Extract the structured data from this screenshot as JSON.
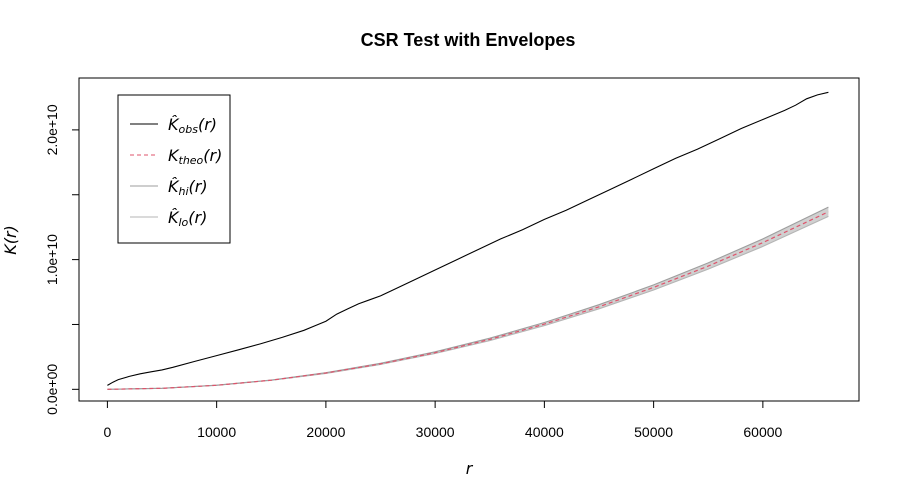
{
  "chart_data": {
    "type": "line",
    "title": "CSR Test with Envelopes",
    "xlabel": "r",
    "ylabel": "K(r)",
    "xlim": [
      -2600,
      68800
    ],
    "ylim": [
      -900000000,
      24000000000
    ],
    "x_ticks": [
      {
        "value": 0,
        "label": "0"
      },
      {
        "value": 10000,
        "label": "10000"
      },
      {
        "value": 20000,
        "label": "20000"
      },
      {
        "value": 30000,
        "label": "30000"
      },
      {
        "value": 40000,
        "label": "40000"
      },
      {
        "value": 50000,
        "label": "50000"
      },
      {
        "value": 60000,
        "label": "60000"
      }
    ],
    "y_ticks": [
      {
        "value": 0,
        "label": "0.0e+00"
      },
      {
        "value": 5000000000,
        "label": ""
      },
      {
        "value": 10000000000,
        "label": "1.0e+10"
      },
      {
        "value": 15000000000,
        "label": ""
      },
      {
        "value": 20000000000,
        "label": "2.0e+10"
      }
    ],
    "legend_position": "top-left",
    "series": [
      {
        "name": "K̂obs(r)",
        "label_base": "K̂",
        "label_sub": "obs",
        "label_tail": "(r)",
        "color": "#000000",
        "style": "solid",
        "x": [
          0,
          500,
          1000,
          2000,
          3000,
          4000,
          5000,
          6000,
          8000,
          10000,
          12000,
          14000,
          16000,
          18000,
          19000,
          20000,
          21000,
          22000,
          23000,
          24000,
          25000,
          26000,
          28000,
          30000,
          32000,
          34000,
          36000,
          38000,
          40000,
          42000,
          44000,
          46000,
          48000,
          50000,
          52000,
          54000,
          56000,
          58000,
          60000,
          62000,
          63000,
          64000,
          65000,
          66000
        ],
        "y": [
          300000000,
          550000000,
          750000000,
          1000000000,
          1200000000,
          1350000000,
          1500000000,
          1700000000,
          2150000000,
          2600000000,
          3050000000,
          3500000000,
          4000000000,
          4550000000,
          4900000000,
          5250000000,
          5800000000,
          6200000000,
          6600000000,
          6900000000,
          7200000000,
          7600000000,
          8400000000,
          9200000000,
          10000000000,
          10800000000,
          11600000000,
          12300000000,
          13100000000,
          13800000000,
          14600000000,
          15400000000,
          16200000000,
          17000000000,
          17800000000,
          18500000000,
          19300000000,
          20100000000,
          20800000000,
          21500000000,
          21900000000,
          22400000000,
          22700000000,
          22900000000
        ]
      },
      {
        "name": "Ktheo(r)",
        "label_base": "K",
        "label_sub": "theo",
        "label_tail": "(r)",
        "color": "#DF536B",
        "style": "dashed",
        "x": [
          0,
          5000,
          10000,
          15000,
          20000,
          25000,
          30000,
          35000,
          40000,
          45000,
          50000,
          55000,
          60000,
          66000
        ],
        "y": [
          0,
          78500000,
          314000000,
          707000000,
          1257000000,
          1963000000,
          2827000000,
          3848000000,
          5027000000,
          6362000000,
          7854000000,
          9503000000,
          11310000000,
          13685000000
        ]
      },
      {
        "name": "K̂hi(r)",
        "label_base": "K̂",
        "label_sub": "hi",
        "label_tail": "(r)",
        "color": "#9E9E9E",
        "style": "solid",
        "x": [
          0,
          5000,
          10000,
          15000,
          20000,
          25000,
          30000,
          35000,
          40000,
          45000,
          50000,
          55000,
          60000,
          66000
        ],
        "y": [
          0,
          80000000,
          320000000,
          720000000,
          1285000000,
          2010000000,
          2895000000,
          3940000000,
          5150000000,
          6520000000,
          8050000000,
          9745000000,
          11600000000,
          14050000000
        ]
      },
      {
        "name": "K̂lo(r)",
        "label_base": "K̂",
        "label_sub": "lo",
        "label_tail": "(r)",
        "color": "#B5B5B5",
        "style": "solid",
        "x": [
          0,
          5000,
          10000,
          15000,
          20000,
          25000,
          30000,
          35000,
          40000,
          45000,
          50000,
          55000,
          60000,
          66000
        ],
        "y": [
          0,
          77000000,
          308000000,
          694000000,
          1230000000,
          1920000000,
          2760000000,
          3760000000,
          4910000000,
          6210000000,
          7660000000,
          9265000000,
          11020000000,
          13330000000
        ]
      }
    ]
  }
}
